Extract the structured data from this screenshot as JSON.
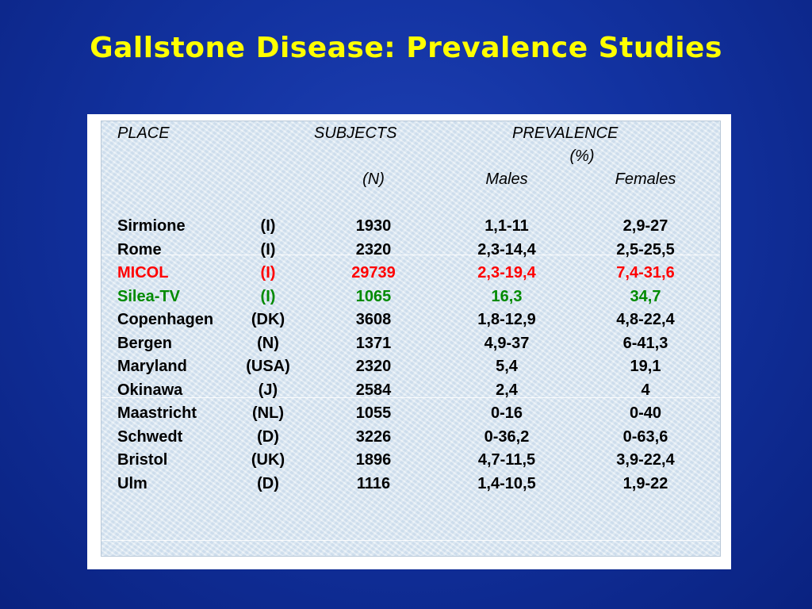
{
  "title": "Gallstone Disease: Prevalence Studies",
  "colors": {
    "title": "#ffff00",
    "highlight_red": "#ff0000",
    "highlight_green": "#008a00"
  },
  "table": {
    "headers": {
      "place": "PLACE",
      "subjects": "SUBJECTS",
      "prevalence": "PREVALENCE",
      "prevalence_unit": "(%)",
      "n": "(N)",
      "males": "Males",
      "females": "Females"
    },
    "rows": [
      {
        "place": "Sirmione",
        "country": "(I)",
        "subjects": "1930",
        "males": "1,1-11",
        "females": "2,9-27",
        "style": "normal"
      },
      {
        "place": "Rome",
        "country": "(I)",
        "subjects": "2320",
        "males": "2,3-14,4",
        "females": "2,5-25,5",
        "style": "normal"
      },
      {
        "place": "MICOL",
        "country": "(I)",
        "subjects": "29739",
        "males": "2,3-19,4",
        "females": "7,4-31,6",
        "style": "red"
      },
      {
        "place": "Silea-TV",
        "country": "(I)",
        "subjects": "1065",
        "males": "16,3",
        "females": "34,7",
        "style": "green"
      },
      {
        "place": "Copenhagen",
        "country": "(DK)",
        "subjects": "3608",
        "males": "1,8-12,9",
        "females": "4,8-22,4",
        "style": "normal"
      },
      {
        "place": "Bergen",
        "country": "(N)",
        "subjects": "1371",
        "males": "4,9-37",
        "females": "6-41,3",
        "style": "normal"
      },
      {
        "place": "Maryland",
        "country": "(USA)",
        "subjects": "2320",
        "males": "5,4",
        "females": "19,1",
        "style": "normal"
      },
      {
        "place": "Okinawa",
        "country": "(J)",
        "subjects": "2584",
        "males": "2,4",
        "females": "4",
        "style": "normal"
      },
      {
        "place": "Maastricht",
        "country": "(NL)",
        "subjects": "1055",
        "males": "0-16",
        "females": "0-40",
        "style": "normal"
      },
      {
        "place": "Schwedt",
        "country": "(D)",
        "subjects": "3226",
        "males": "0-36,2",
        "females": "0-63,6",
        "style": "normal"
      },
      {
        "place": "Bristol",
        "country": "(UK)",
        "subjects": "1896",
        "males": "4,7-11,5",
        "females": "3,9-22,4",
        "style": "normal"
      },
      {
        "place": "Ulm",
        "country": "(D)",
        "subjects": "1116",
        "males": "1,4-10,5",
        "females": "1,9-22",
        "style": "normal"
      }
    ]
  }
}
